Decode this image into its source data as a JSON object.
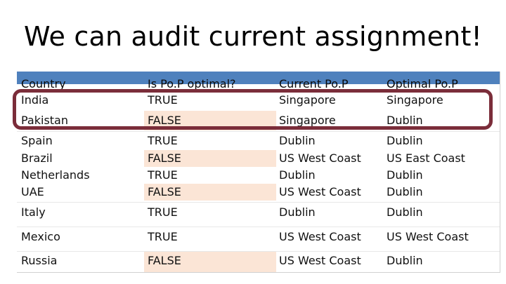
{
  "title": "We can audit current assignment!",
  "columns": [
    "Country",
    "Is Po.P optimal?",
    "Current Po.P",
    "Optimal Po.P"
  ],
  "rows": [
    [
      "India",
      "TRUE",
      "Singapore",
      "Singapore"
    ],
    [
      "Pakistan",
      "FALSE",
      "Singapore",
      "Dublin"
    ],
    [
      "Spain",
      "TRUE",
      "Dublin",
      "Dublin"
    ],
    [
      "Brazil",
      "FALSE",
      "US West Coast",
      "US East Coast"
    ],
    [
      "Netherlands",
      "TRUE",
      "Dublin",
      "Dublin"
    ],
    [
      "UAE",
      "FALSE",
      "US West Coast",
      "Dublin"
    ],
    [
      "Italy",
      "TRUE",
      "Dublin",
      "Dublin"
    ],
    [
      "Mexico",
      "TRUE",
      "US West Coast",
      "US West Coast"
    ],
    [
      "Russia",
      "FALSE",
      "US West Coast",
      "Dublin"
    ]
  ],
  "colors": {
    "header": "#4f81bd",
    "false_fill": "#fbe5d6",
    "highlight_border": "#7b2d3a"
  }
}
